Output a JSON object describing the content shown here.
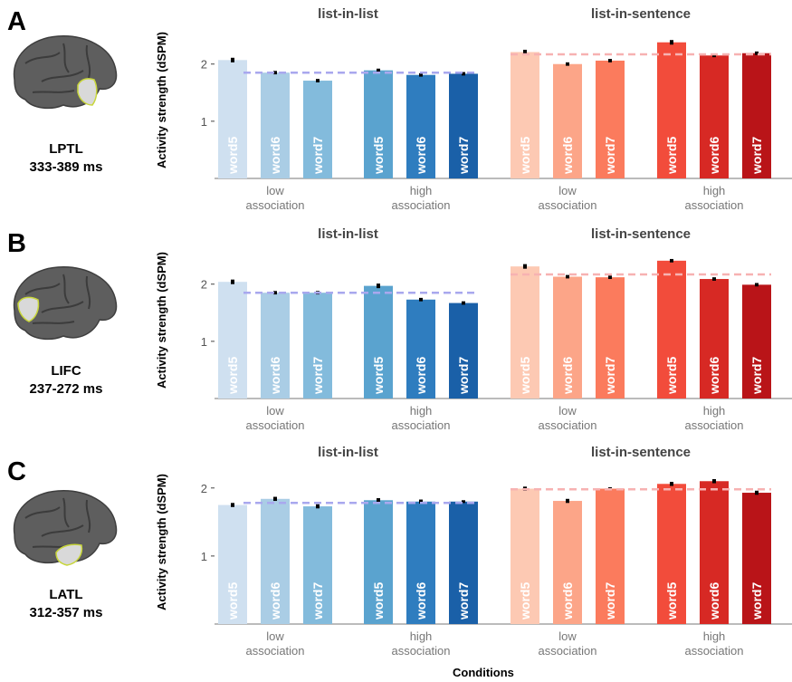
{
  "figure": {
    "xlabel": "Conditions",
    "ylabel": "Activity strength (dSPM)",
    "colors": {
      "list_mean_line": "#a9a8ee",
      "sentence_mean_line": "#f7b2b2",
      "blue": [
        "#cfe0f0",
        "#aacde5",
        "#83bbdc",
        "#5aa3cf",
        "#2f7dbf",
        "#1a60a8"
      ],
      "red": [
        "#fdc9b3",
        "#fca588",
        "#fb7b5d",
        "#f24c3b",
        "#d72924",
        "#b91418"
      ]
    }
  },
  "chart_data": [
    {
      "type": "bar",
      "panel": "A",
      "region": "LPTL",
      "window": "333-389 ms",
      "ylabel": "Activity strength (dSPM)",
      "ylim": [
        0,
        2.55
      ],
      "yticks": [
        1,
        2
      ],
      "groups": [
        {
          "title": "list-in-list",
          "mean_line": 1.85,
          "subgroups": [
            {
              "label_top": "low",
              "label_bottom": "association",
              "bars": [
                {
                  "label": "word5",
                  "value": 2.07,
                  "err": 0.04
                },
                {
                  "label": "word6",
                  "value": 1.85,
                  "err": 0.03
                },
                {
                  "label": "word7",
                  "value": 1.71,
                  "err": 0.03
                }
              ]
            },
            {
              "label_top": "high",
              "label_bottom": "association",
              "bars": [
                {
                  "label": "word5",
                  "value": 1.89,
                  "err": 0.03
                },
                {
                  "label": "word6",
                  "value": 1.81,
                  "err": 0.03
                },
                {
                  "label": "word7",
                  "value": 1.83,
                  "err": 0.03
                }
              ]
            }
          ]
        },
        {
          "title": "list-in-sentence",
          "mean_line": 2.17,
          "subgroups": [
            {
              "label_top": "low",
              "label_bottom": "association",
              "bars": [
                {
                  "label": "word5",
                  "value": 2.21,
                  "err": 0.04
                },
                {
                  "label": "word6",
                  "value": 2.0,
                  "err": 0.03
                },
                {
                  "label": "word7",
                  "value": 2.06,
                  "err": 0.03
                }
              ]
            },
            {
              "label_top": "high",
              "label_bottom": "association",
              "bars": [
                {
                  "label": "word5",
                  "value": 2.38,
                  "err": 0.04
                },
                {
                  "label": "word6",
                  "value": 2.15,
                  "err": 0.03
                },
                {
                  "label": "word7",
                  "value": 2.19,
                  "err": 0.03
                }
              ]
            }
          ]
        }
      ]
    },
    {
      "type": "bar",
      "panel": "B",
      "region": "LIFC",
      "window": "237-272 ms",
      "ylabel": "Activity strength (dSPM)",
      "ylim": [
        0,
        2.55
      ],
      "yticks": [
        1,
        2
      ],
      "groups": [
        {
          "title": "list-in-list",
          "mean_line": 1.85,
          "subgroups": [
            {
              "label_top": "low",
              "label_bottom": "association",
              "bars": [
                {
                  "label": "word5",
                  "value": 2.04,
                  "err": 0.04
                },
                {
                  "label": "word6",
                  "value": 1.85,
                  "err": 0.03
                },
                {
                  "label": "word7",
                  "value": 1.85,
                  "err": 0.03
                }
              ]
            },
            {
              "label_top": "high",
              "label_bottom": "association",
              "bars": [
                {
                  "label": "word5",
                  "value": 1.97,
                  "err": 0.04
                },
                {
                  "label": "word6",
                  "value": 1.73,
                  "err": 0.03
                },
                {
                  "label": "word7",
                  "value": 1.67,
                  "err": 0.03
                }
              ]
            }
          ]
        },
        {
          "title": "list-in-sentence",
          "mean_line": 2.17,
          "subgroups": [
            {
              "label_top": "low",
              "label_bottom": "association",
              "bars": [
                {
                  "label": "word5",
                  "value": 2.31,
                  "err": 0.04
                },
                {
                  "label": "word6",
                  "value": 2.13,
                  "err": 0.03
                },
                {
                  "label": "word7",
                  "value": 2.12,
                  "err": 0.03
                }
              ]
            },
            {
              "label_top": "high",
              "label_bottom": "association",
              "bars": [
                {
                  "label": "word5",
                  "value": 2.41,
                  "err": 0.03
                },
                {
                  "label": "word6",
                  "value": 2.09,
                  "err": 0.03
                },
                {
                  "label": "word7",
                  "value": 1.99,
                  "err": 0.03
                }
              ]
            }
          ]
        }
      ]
    },
    {
      "type": "bar",
      "panel": "C",
      "region": "LATL",
      "window": "312-357 ms",
      "ylabel": "Activity strength (dSPM)",
      "ylim": [
        0,
        2.25
      ],
      "yticks": [
        1,
        2
      ],
      "groups": [
        {
          "title": "list-in-list",
          "mean_line": 1.78,
          "subgroups": [
            {
              "label_top": "low",
              "label_bottom": "association",
              "bars": [
                {
                  "label": "word5",
                  "value": 1.75,
                  "err": 0.03
                },
                {
                  "label": "word6",
                  "value": 1.84,
                  "err": 0.03
                },
                {
                  "label": "word7",
                  "value": 1.73,
                  "err": 0.03
                }
              ]
            },
            {
              "label_top": "high",
              "label_bottom": "association",
              "bars": [
                {
                  "label": "word5",
                  "value": 1.82,
                  "err": 0.03
                },
                {
                  "label": "word6",
                  "value": 1.8,
                  "err": 0.03
                },
                {
                  "label": "word7",
                  "value": 1.8,
                  "err": 0.02
                }
              ]
            }
          ]
        },
        {
          "title": "list-in-sentence",
          "mean_line": 1.98,
          "subgroups": [
            {
              "label_top": "low",
              "label_bottom": "association",
              "bars": [
                {
                  "label": "word5",
                  "value": 1.99,
                  "err": 0.03
                },
                {
                  "label": "word6",
                  "value": 1.81,
                  "err": 0.03
                },
                {
                  "label": "word7",
                  "value": 1.99,
                  "err": 0.02
                }
              ]
            },
            {
              "label_top": "high",
              "label_bottom": "association",
              "bars": [
                {
                  "label": "word5",
                  "value": 2.06,
                  "err": 0.03
                },
                {
                  "label": "word6",
                  "value": 2.1,
                  "err": 0.03
                },
                {
                  "label": "word7",
                  "value": 1.93,
                  "err": 0.03
                }
              ]
            }
          ]
        }
      ]
    }
  ]
}
